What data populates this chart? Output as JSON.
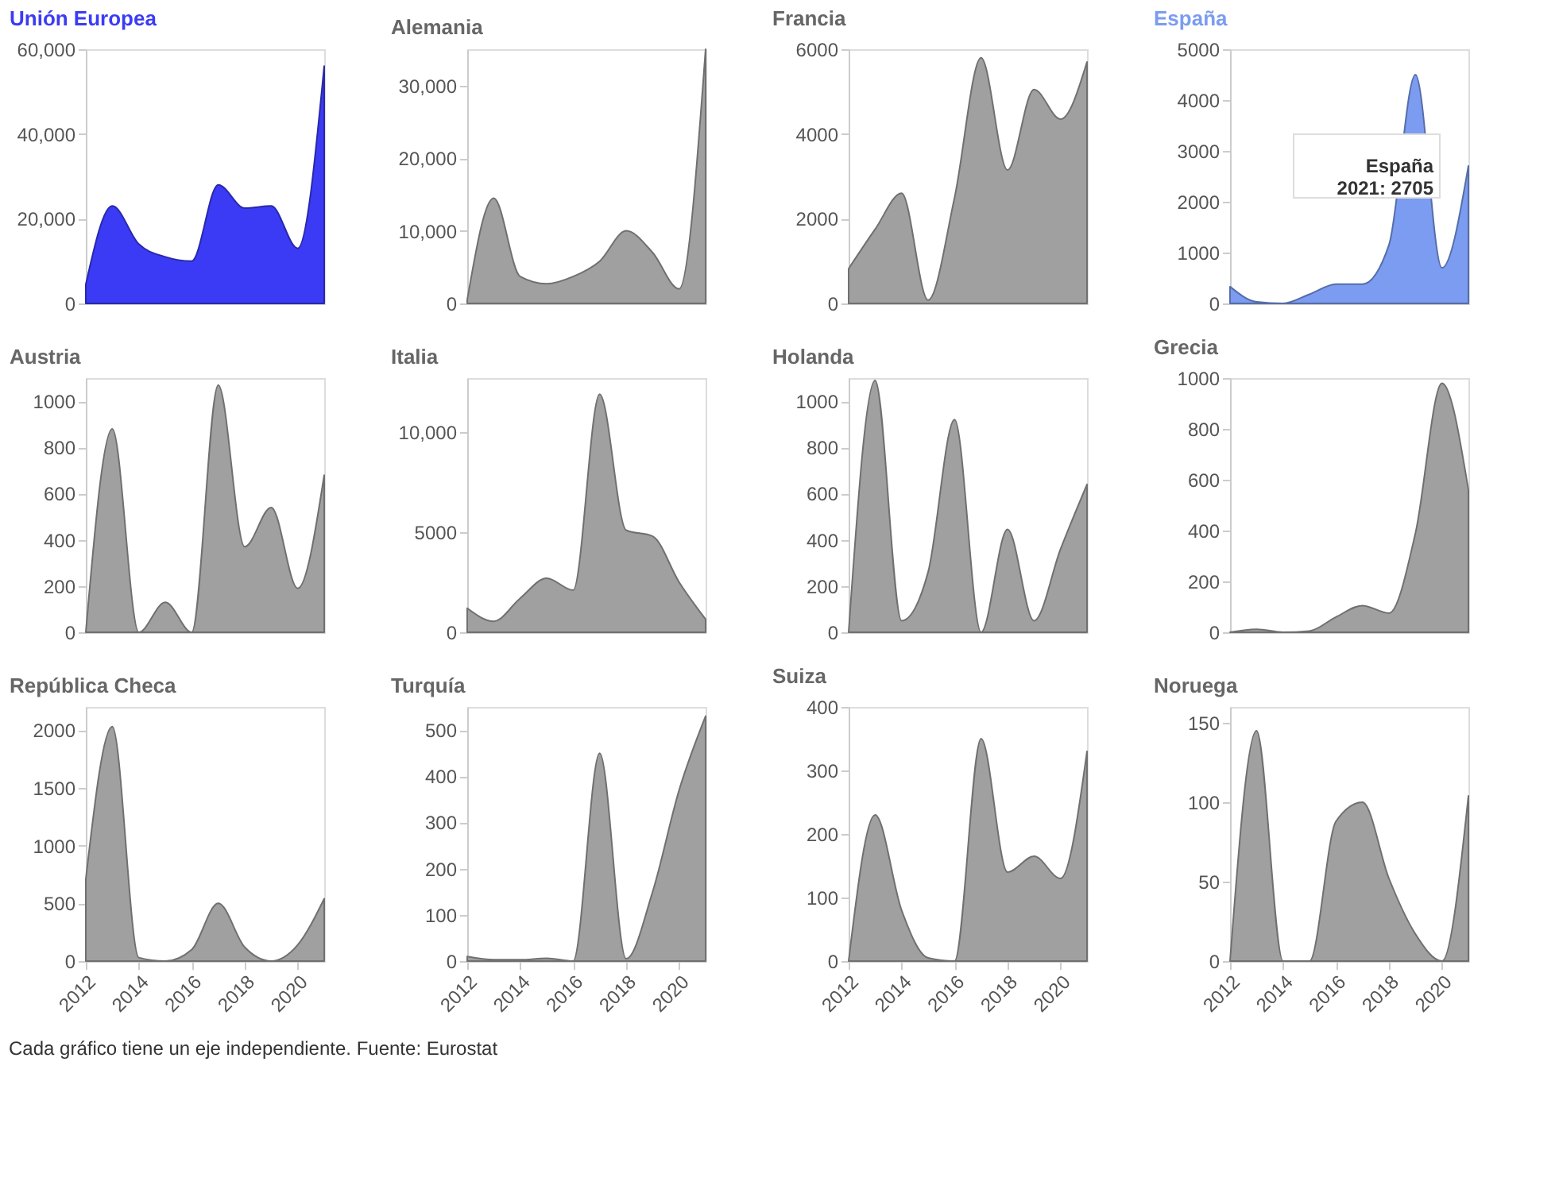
{
  "chart_data": [
    {
      "type": "area",
      "title": "Unión Europea",
      "x": [
        2012,
        2013,
        2014,
        2015,
        2016,
        2017,
        2018,
        2019,
        2020,
        2021
      ],
      "xlim": [
        2012,
        2021
      ],
      "xticks": [
        2012,
        2014,
        2016,
        2018,
        2020
      ],
      "ylim": [
        0,
        60000
      ],
      "yticks": [
        0,
        {
          "value": 20000,
          "label": "20,000"
        },
        {
          "value": 40000,
          "label": "40,000"
        },
        {
          "value": 60000,
          "label": "60,000"
        }
      ],
      "tick_labels": "y",
      "grid": false,
      "series": [
        {
          "color": "#3b3bf5",
          "values": [
            4500,
            23000,
            14000,
            11000,
            10000,
            28000,
            22500,
            23000,
            13000,
            56000
          ]
        }
      ]
    },
    {
      "type": "area",
      "title": "Alemania",
      "x": [
        2012,
        2013,
        2014,
        2015,
        2016,
        2017,
        2018,
        2019,
        2020,
        2021
      ],
      "xlim": [
        2012,
        2021
      ],
      "xticks": [
        2012,
        2014,
        2016,
        2018,
        2020
      ],
      "ylim": [
        0,
        35000
      ],
      "yticks": [
        0,
        {
          "value": 10000,
          "label": "10,000"
        },
        {
          "value": 20000,
          "label": "20,000"
        },
        {
          "value": 30000,
          "label": "30,000"
        }
      ],
      "tick_labels": "y",
      "grid": false,
      "series": [
        {
          "color": "#a0a0a0",
          "values": [
            500,
            14500,
            3700,
            2700,
            3700,
            5800,
            10000,
            7000,
            2000,
            35000
          ]
        }
      ]
    },
    {
      "type": "area",
      "title": "Francia",
      "x": [
        2012,
        2013,
        2014,
        2015,
        2016,
        2017,
        2018,
        2019,
        2020,
        2021
      ],
      "xlim": [
        2012,
        2021
      ],
      "xticks": [
        2012,
        2014,
        2016,
        2018,
        2020
      ],
      "ylim": [
        0,
        6000
      ],
      "yticks": [
        0,
        2000,
        4000,
        6000
      ],
      "tick_labels": "y",
      "grid": false,
      "series": [
        {
          "color": "#a0a0a0",
          "values": [
            820,
            1750,
            2600,
            80,
            2500,
            5800,
            3150,
            5050,
            4350,
            5700
          ]
        }
      ]
    },
    {
      "type": "area",
      "title": "España",
      "x": [
        2012,
        2013,
        2014,
        2015,
        2016,
        2017,
        2018,
        2019,
        2020,
        2021
      ],
      "xlim": [
        2012,
        2021
      ],
      "xticks": [
        2012,
        2014,
        2016,
        2018,
        2020
      ],
      "ylim": [
        0,
        5000
      ],
      "yticks": [
        0,
        1000,
        2000,
        3000,
        4000,
        5000
      ],
      "tick_labels": "y",
      "grid": false,
      "annotations": [
        {
          "text": "España\n2021: 2705",
          "x": 2021,
          "y": 2705
        }
      ],
      "series": [
        {
          "color": "#7b9cf0",
          "values": [
            330,
            30,
            0,
            180,
            380,
            380,
            1150,
            4500,
            700,
            2705
          ]
        }
      ]
    },
    {
      "type": "area",
      "title": "Austria",
      "x": [
        2012,
        2013,
        2014,
        2015,
        2016,
        2017,
        2018,
        2019,
        2020,
        2021
      ],
      "xlim": [
        2012,
        2021
      ],
      "xticks": [
        2012,
        2014,
        2016,
        2018,
        2020
      ],
      "ylim": [
        0,
        1100
      ],
      "yticks": [
        0,
        200,
        400,
        600,
        800,
        1000
      ],
      "tick_labels": "y",
      "grid": false,
      "series": [
        {
          "color": "#a0a0a0",
          "values": [
            0,
            880,
            0,
            130,
            0,
            1070,
            370,
            540,
            190,
            680
          ]
        }
      ]
    },
    {
      "type": "area",
      "title": "Italia",
      "x": [
        2012,
        2013,
        2014,
        2015,
        2016,
        2017,
        2018,
        2019,
        2020,
        2021
      ],
      "xlim": [
        2012,
        2021
      ],
      "xticks": [
        2012,
        2014,
        2016,
        2018,
        2020
      ],
      "ylim": [
        0,
        12700
      ],
      "yticks": [
        0,
        5000,
        {
          "value": 10000,
          "label": "10,000"
        }
      ],
      "tick_labels": "y",
      "grid": false,
      "series": [
        {
          "color": "#a0a0a0",
          "values": [
            1200,
            550,
            1700,
            2700,
            2100,
            11900,
            5100,
            4800,
            2500,
            650
          ]
        }
      ]
    },
    {
      "type": "area",
      "title": "Holanda",
      "x": [
        2012,
        2013,
        2014,
        2015,
        2016,
        2017,
        2018,
        2019,
        2020,
        2021
      ],
      "xlim": [
        2012,
        2021
      ],
      "xticks": [
        2012,
        2014,
        2016,
        2018,
        2020
      ],
      "ylim": [
        0,
        1100
      ],
      "yticks": [
        0,
        200,
        400,
        600,
        800,
        1000
      ],
      "tick_labels": "y",
      "grid": false,
      "series": [
        {
          "color": "#a0a0a0",
          "values": [
            0,
            1090,
            50,
            260,
            920,
            0,
            445,
            50,
            360,
            640
          ]
        }
      ]
    },
    {
      "type": "area",
      "title": "Grecia",
      "x": [
        2012,
        2013,
        2014,
        2015,
        2016,
        2017,
        2018,
        2019,
        2020,
        2021
      ],
      "xlim": [
        2012,
        2021
      ],
      "xticks": [
        2012,
        2014,
        2016,
        2018,
        2020
      ],
      "ylim": [
        0,
        1000
      ],
      "yticks": [
        0,
        200,
        400,
        600,
        800,
        1000
      ],
      "tick_labels": "y",
      "grid": false,
      "series": [
        {
          "color": "#a0a0a0",
          "values": [
            0,
            12,
            0,
            5,
            60,
            105,
            75,
            390,
            980,
            560
          ]
        }
      ]
    },
    {
      "type": "area",
      "title": "República Checa",
      "x": [
        2012,
        2013,
        2014,
        2015,
        2016,
        2017,
        2018,
        2019,
        2020,
        2021
      ],
      "xlim": [
        2012,
        2021
      ],
      "xticks": [
        2012,
        2014,
        2016,
        2018,
        2020
      ],
      "ylim": [
        0,
        2200
      ],
      "yticks": [
        0,
        500,
        1000,
        1500,
        2000
      ],
      "grid": false,
      "series": [
        {
          "color": "#a0a0a0",
          "values": [
            710,
            2030,
            30,
            0,
            100,
            500,
            120,
            0,
            140,
            540
          ]
        }
      ]
    },
    {
      "type": "area",
      "title": "Turquía",
      "x": [
        2012,
        2013,
        2014,
        2015,
        2016,
        2017,
        2018,
        2019,
        2020,
        2021
      ],
      "xlim": [
        2012,
        2021
      ],
      "xticks": [
        2012,
        2014,
        2016,
        2018,
        2020
      ],
      "ylim": [
        0,
        550
      ],
      "yticks": [
        0,
        100,
        200,
        300,
        400,
        500
      ],
      "grid": false,
      "series": [
        {
          "color": "#a0a0a0",
          "values": [
            10,
            3,
            3,
            6,
            0,
            450,
            5,
            150,
            370,
            530
          ]
        }
      ]
    },
    {
      "type": "area",
      "title": "Suiza",
      "x": [
        2012,
        2013,
        2014,
        2015,
        2016,
        2017,
        2018,
        2019,
        2020,
        2021
      ],
      "xlim": [
        2012,
        2021
      ],
      "xticks": [
        2012,
        2014,
        2016,
        2018,
        2020
      ],
      "ylim": [
        0,
        400
      ],
      "yticks": [
        0,
        100,
        200,
        300,
        400
      ],
      "grid": false,
      "series": [
        {
          "color": "#a0a0a0",
          "values": [
            0,
            230,
            80,
            5,
            0,
            350,
            140,
            165,
            130,
            330
          ]
        }
      ]
    },
    {
      "type": "area",
      "title": "Noruega",
      "x": [
        2012,
        2013,
        2014,
        2015,
        2016,
        2017,
        2018,
        2019,
        2020,
        2021
      ],
      "xlim": [
        2012,
        2021
      ],
      "xticks": [
        2012,
        2014,
        2016,
        2018,
        2020
      ],
      "ylim": [
        0,
        160
      ],
      "yticks": [
        0,
        50,
        100,
        150
      ],
      "grid": false,
      "annotations": [
        "Cada gráfico tiene un eje independiente. Fuente: Eurostat"
      ],
      "series": [
        {
          "color": "#a0a0a0",
          "values": [
            0,
            145,
            0,
            0,
            88,
            100,
            52,
            17,
            0,
            104
          ]
        }
      ]
    }
  ]
}
